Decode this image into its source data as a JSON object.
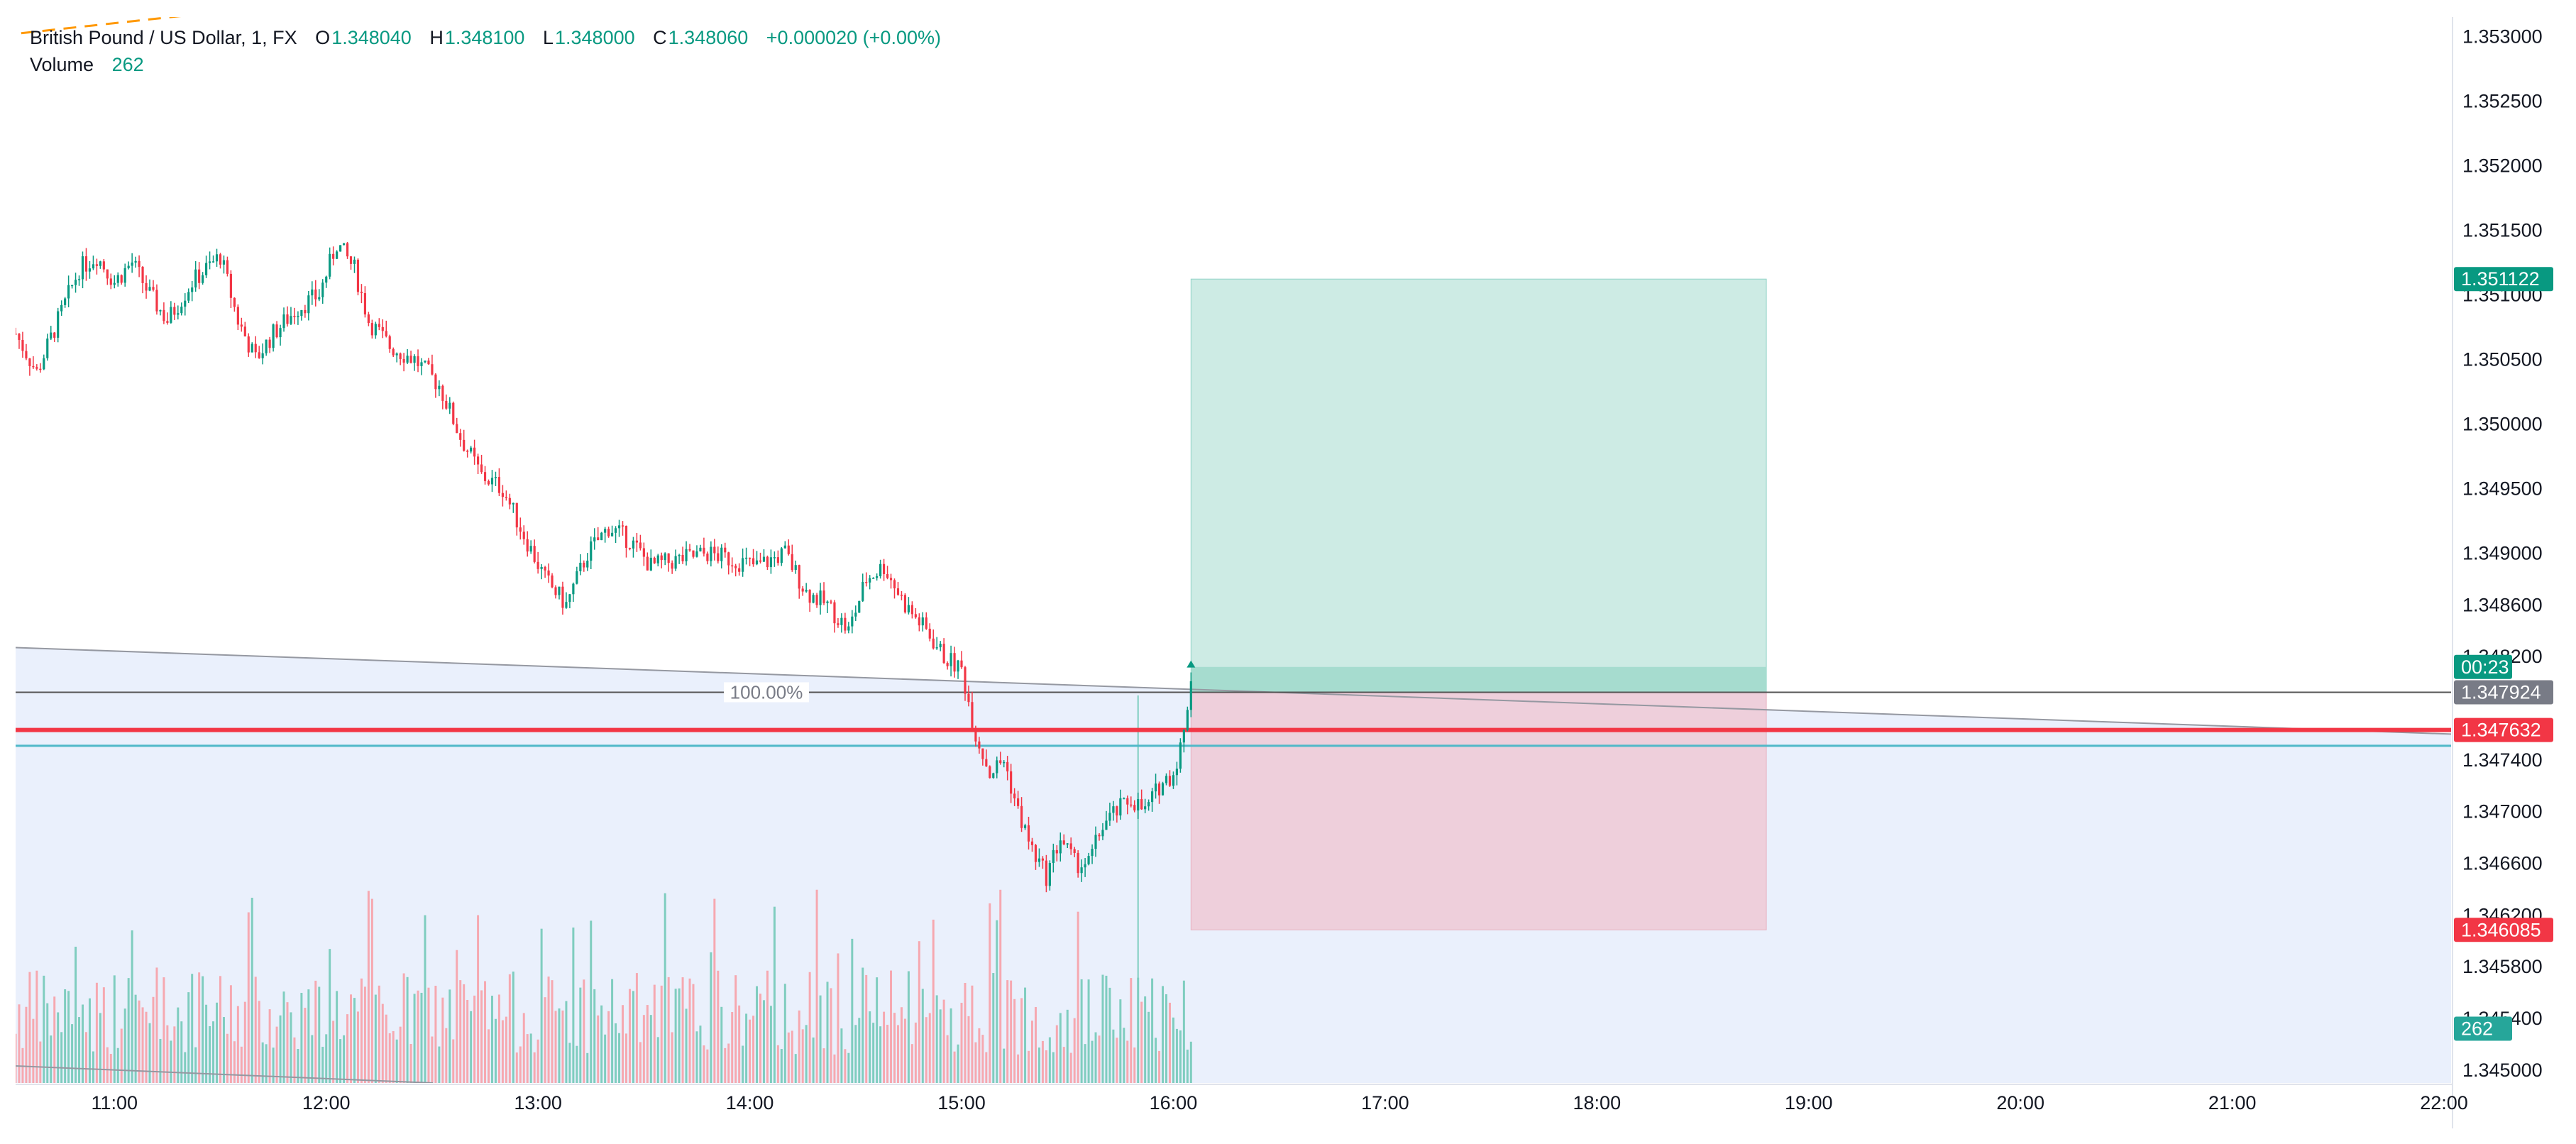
{
  "legend": {
    "symbol": "British Pound / US Dollar, 1, FX",
    "o_label": "O",
    "o_value": "1.348040",
    "h_label": "H",
    "h_value": "1.348100",
    "l_label": "L",
    "l_value": "1.348000",
    "c_label": "C",
    "c_value": "1.348060",
    "change": "+0.000020 (+0.00%)",
    "volume_label": "Volume",
    "volume_value": "262"
  },
  "colors": {
    "up": "#089981",
    "down": "#f23645",
    "vol_up": "#7fcdbf",
    "vol_down": "#f6a8b0",
    "profit_zone": "#cdebe4",
    "loss_zone": "#eecfdb",
    "fib_zone": "#eaf0fc",
    "stop_line": "#f23645",
    "entry_line": "#4fb8c8",
    "price_line": "#555555"
  },
  "chart_data": {
    "type": "candlestick",
    "title": "British Pound / US Dollar, 1, FX",
    "x_ticks": [
      "11:00",
      "12:00",
      "13:00",
      "14:00",
      "15:00",
      "16:00",
      "17:00",
      "18:00",
      "19:00",
      "20:00",
      "21:00",
      "22:00"
    ],
    "x_range": [
      "10:32",
      "22:02"
    ],
    "y_ticks": [
      "1.353000",
      "1.352500",
      "1.352000",
      "1.351500",
      "1.351000",
      "1.350500",
      "1.350000",
      "1.349500",
      "1.349000",
      "1.348600",
      "1.348200",
      "1.347400",
      "1.347000",
      "1.346600",
      "1.346200",
      "1.345800",
      "1.345400",
      "1.345000"
    ],
    "y_range": [
      1.3449,
      1.35315
    ],
    "price_tags": [
      {
        "name": "target-price-tag",
        "value": "1.351122",
        "price": 1.351122,
        "color": "#089981"
      },
      {
        "name": "countdown-tag",
        "value": "00:23",
        "price": 1.34812,
        "color": "#089981"
      },
      {
        "name": "last-price-tag",
        "value": "1.347924",
        "price": 1.347924,
        "color": "#787b86"
      },
      {
        "name": "stop-price-tag",
        "value": "1.347632",
        "price": 1.347632,
        "color": "#f23645"
      },
      {
        "name": "stop-loss-tag",
        "value": "1.346085",
        "price": 1.346085,
        "color": "#f23645"
      },
      {
        "name": "volume-tag",
        "value": "262",
        "price": 1.34532,
        "color": "#26a69a"
      }
    ],
    "position": {
      "type": "long",
      "start_time": "16:05",
      "end_time": "18:48",
      "entry": 1.347924,
      "target": 1.351122,
      "stop": 1.346085
    },
    "fib_label": "100.00%",
    "fib_level": 1.347924,
    "horizontal_lines": [
      {
        "name": "last-price-line",
        "price": 1.347924
      },
      {
        "name": "stop-line",
        "price": 1.347632
      },
      {
        "name": "entry-line",
        "price": 1.34751
      }
    ],
    "trend_line": {
      "start": {
        "time": "10:32",
        "price": 1.34827
      },
      "end": {
        "time": "22:02",
        "price": 1.3476
      }
    },
    "price_path": [
      [
        "10:32",
        1.3507
      ],
      [
        "10:38",
        1.3504
      ],
      [
        "10:44",
        1.3508
      ],
      [
        "10:50",
        1.3512
      ],
      [
        "10:55",
        1.3513
      ],
      [
        "11:00",
        1.3511
      ],
      [
        "11:05",
        1.35125
      ],
      [
        "11:10",
        1.351
      ],
      [
        "11:15",
        1.3508
      ],
      [
        "11:22",
        1.3511
      ],
      [
        "11:30",
        1.3513
      ],
      [
        "11:35",
        1.3508
      ],
      [
        "11:40",
        1.3505
      ],
      [
        "11:45",
        1.3507
      ],
      [
        "11:52",
        1.3509
      ],
      [
        "11:58",
        1.351
      ],
      [
        "12:03",
        1.3514
      ],
      [
        "12:08",
        1.3512
      ],
      [
        "12:12",
        1.3508
      ],
      [
        "12:18",
        1.3506
      ],
      [
        "12:25",
        1.3505
      ],
      [
        "12:32",
        1.3503
      ],
      [
        "12:38",
        1.3499
      ],
      [
        "12:44",
        1.3496
      ],
      [
        "12:50",
        1.3495
      ],
      [
        "12:55",
        1.3492
      ],
      [
        "13:02",
        1.3488
      ],
      [
        "13:08",
        1.3486
      ],
      [
        "13:14",
        1.349
      ],
      [
        "13:20",
        1.3492
      ],
      [
        "13:26",
        1.3491
      ],
      [
        "13:32",
        1.3489
      ],
      [
        "13:40",
        1.34895
      ],
      [
        "13:48",
        1.349
      ],
      [
        "13:55",
        1.34895
      ],
      [
        "14:02",
        1.3489
      ],
      [
        "14:10",
        1.349
      ],
      [
        "14:16",
        1.3487
      ],
      [
        "14:22",
        1.3486
      ],
      [
        "14:28",
        1.3484
      ],
      [
        "14:33",
        1.3488
      ],
      [
        "14:38",
        1.3489
      ],
      [
        "14:44",
        1.3486
      ],
      [
        "14:50",
        1.3484
      ],
      [
        "14:55",
        1.3482
      ],
      [
        "15:00",
        1.3481
      ],
      [
        "15:04",
        1.3476
      ],
      [
        "15:08",
        1.3473
      ],
      [
        "15:12",
        1.3474
      ],
      [
        "15:16",
        1.347
      ],
      [
        "15:20",
        1.3467
      ],
      [
        "15:24",
        1.3465
      ],
      [
        "15:28",
        1.3468
      ],
      [
        "15:32",
        1.3466
      ],
      [
        "15:36",
        1.3466
      ],
      [
        "15:40",
        1.3469
      ],
      [
        "15:44",
        1.347
      ],
      [
        "15:48",
        1.3471
      ],
      [
        "15:52",
        1.347
      ],
      [
        "15:56",
        1.3472
      ],
      [
        "16:00",
        1.3473
      ],
      [
        "16:03",
        1.3476
      ],
      [
        "16:05",
        1.34806
      ]
    ]
  }
}
